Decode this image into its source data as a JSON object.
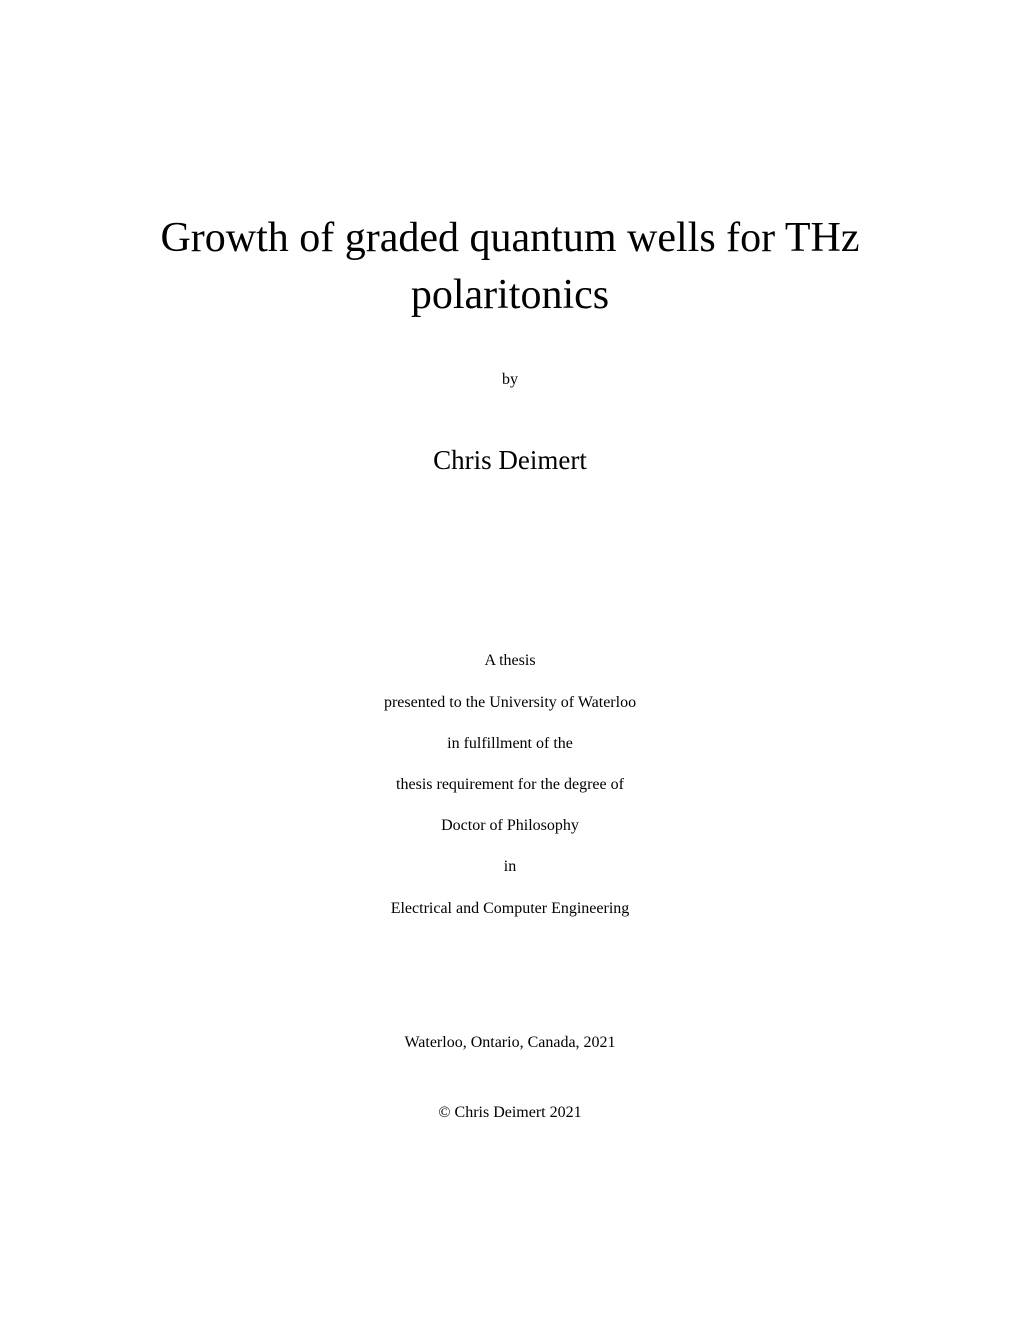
{
  "title": "Growth of graded quantum wells for THz polaritonics",
  "by_label": "by",
  "author": "Chris Deimert",
  "thesis": {
    "line1": "A thesis",
    "line2": "presented to the University of Waterloo",
    "line3": "in fulfillment of the",
    "line4": "thesis requirement for the degree of",
    "line5": "Doctor of Philosophy",
    "line6": "in",
    "line7": "Electrical and Computer Engineering"
  },
  "location": "Waterloo, Ontario, Canada, 2021",
  "copyright": "© Chris Deimert 2021",
  "colors": {
    "background": "#ffffff",
    "text": "#000000"
  },
  "typography": {
    "title_fontsize": 42,
    "author_fontsize": 27,
    "body_fontsize": 16,
    "font_family": "Georgia, Times New Roman, serif"
  }
}
